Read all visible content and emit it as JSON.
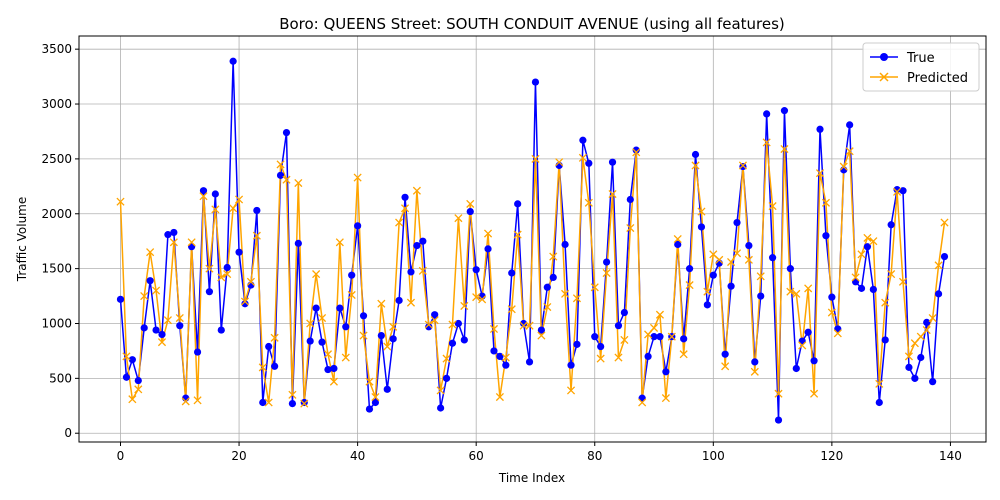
{
  "chart_data": {
    "type": "line",
    "title": "Boro: QUEENS Street: SOUTH CONDUIT AVENUE (using all features)",
    "xlabel": "Time Index",
    "ylabel": "Traffic Volume",
    "xlim": [
      -7,
      146
    ],
    "ylim": [
      -80,
      3620
    ],
    "xticks": [
      0,
      20,
      40,
      60,
      80,
      100,
      120,
      140
    ],
    "yticks": [
      0,
      500,
      1000,
      1500,
      2000,
      2500,
      3000,
      3500
    ],
    "grid": true,
    "legend_position": "top-right",
    "series": [
      {
        "name": "True",
        "color": "#0000ff",
        "marker": "circle",
        "values": [
          1220,
          510,
          670,
          480,
          960,
          1390,
          940,
          900,
          1810,
          1830,
          980,
          320,
          1700,
          740,
          2210,
          1290,
          2180,
          940,
          1510,
          3390,
          1650,
          1180,
          1350,
          2030,
          280,
          790,
          610,
          2350,
          2740,
          270,
          1730,
          280,
          840,
          1140,
          830,
          580,
          590,
          1140,
          970,
          1440,
          1890,
          1070,
          220,
          280,
          890,
          400,
          860,
          1210,
          2150,
          1470,
          1710,
          1750,
          970,
          1080,
          230,
          500,
          820,
          1000,
          850,
          2020,
          1490,
          1250,
          1680,
          750,
          700,
          620,
          1460,
          2090,
          1000,
          650,
          3200,
          940,
          1330,
          1420,
          2440,
          1720,
          620,
          810,
          2670,
          2460,
          880,
          790,
          1560,
          2470,
          980,
          1100,
          2130,
          2580,
          320,
          700,
          880,
          880,
          560,
          880,
          1720,
          860,
          1500,
          2540,
          1880,
          1170,
          1440,
          1550,
          720,
          1340,
          1920,
          2430,
          1710,
          650,
          1250,
          2910,
          1600,
          120,
          2940,
          1500,
          590,
          840,
          920,
          660,
          2770,
          1800,
          1240,
          950,
          2400,
          2810,
          1380,
          1320,
          1700,
          1310,
          280,
          850,
          1900,
          2220,
          2210,
          600,
          500,
          690,
          1010,
          470,
          1270,
          1610
        ]
      },
      {
        "name": "Predicted",
        "color": "#ffa500",
        "marker": "x",
        "values": [
          2110,
          700,
          310,
          400,
          1250,
          1650,
          1300,
          830,
          1030,
          1740,
          1050,
          290,
          1740,
          300,
          2160,
          1500,
          2040,
          1420,
          1450,
          2050,
          2130,
          1200,
          1380,
          1800,
          600,
          280,
          870,
          2450,
          2310,
          350,
          2280,
          270,
          1000,
          1450,
          1050,
          720,
          470,
          1740,
          690,
          1260,
          2330,
          890,
          470,
          330,
          1180,
          790,
          970,
          1920,
          2050,
          1190,
          2210,
          1480,
          990,
          1030,
          390,
          680,
          990,
          1960,
          1160,
          2090,
          1240,
          1220,
          1820,
          950,
          330,
          690,
          1130,
          1810,
          980,
          980,
          2500,
          890,
          1150,
          1610,
          2470,
          1270,
          390,
          1230,
          2510,
          2100,
          1330,
          680,
          1460,
          2180,
          690,
          850,
          1870,
          2560,
          280,
          900,
          960,
          1080,
          320,
          880,
          1770,
          720,
          1350,
          2440,
          2020,
          1290,
          1630,
          1580,
          610,
          1560,
          1640,
          2440,
          1580,
          560,
          1430,
          2650,
          2070,
          360,
          2590,
          1290,
          1270,
          800,
          1320,
          360,
          2370,
          2100,
          1100,
          910,
          2430,
          2570,
          1420,
          1630,
          1780,
          1750,
          450,
          1190,
          1450,
          2200,
          1380,
          700,
          820,
          880,
          940,
          1050,
          1530,
          1920
        ]
      }
    ]
  }
}
